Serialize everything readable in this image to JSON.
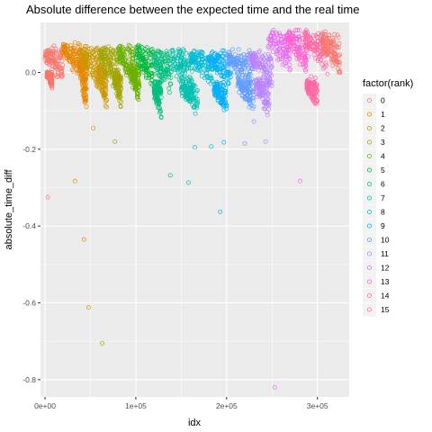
{
  "chart_data": {
    "type": "scatter",
    "title": "Absolute difference between the expected time and the real time",
    "xlabel": "idx",
    "ylabel": "absolute_time_diff",
    "xlim": [
      -5000,
      335000
    ],
    "ylim": [
      -0.845,
      0.13
    ],
    "x_ticks": [
      0,
      100000,
      200000,
      300000
    ],
    "x_tick_labels": [
      "0e+00",
      "1e+05",
      "2e+05",
      "3e+05"
    ],
    "y_ticks": [
      0.0,
      -0.2,
      -0.4,
      -0.6,
      -0.8
    ],
    "y_tick_labels": [
      "0.0",
      "-0.2",
      "-0.4",
      "-0.6",
      "-0.8"
    ],
    "grid": true,
    "legend_position": "right",
    "legend_title": "factor(rank)",
    "series": [
      {
        "name": "0",
        "color": "#F8766D"
      },
      {
        "name": "1",
        "color": "#E58700"
      },
      {
        "name": "2",
        "color": "#C99800"
      },
      {
        "name": "3",
        "color": "#A3A500"
      },
      {
        "name": "4",
        "color": "#6BB100"
      },
      {
        "name": "5",
        "color": "#00BA38"
      },
      {
        "name": "6",
        "color": "#00BF7D"
      },
      {
        "name": "7",
        "color": "#00C0AF"
      },
      {
        "name": "8",
        "color": "#00BCD8"
      },
      {
        "name": "9",
        "color": "#00B0F6"
      },
      {
        "name": "10",
        "color": "#619CFF"
      },
      {
        "name": "11",
        "color": "#B983FF"
      },
      {
        "name": "12",
        "color": "#E76BF3"
      },
      {
        "name": "13",
        "color": "#FD61D1"
      },
      {
        "name": "14",
        "color": "#FF67A4"
      },
      {
        "name": "15",
        "color": "#F8766D"
      }
    ],
    "clusters": [
      {
        "series": 0,
        "x": [
          0,
          20000
        ],
        "y_top": 0.06,
        "y_bottom": -0.03
      },
      {
        "series": 0,
        "x": [
          2000,
          8000
        ],
        "y_top": 0.0,
        "y_bottom": -0.04
      },
      {
        "series": 1,
        "x": [
          20000,
          40000
        ],
        "y_top": 0.07,
        "y_bottom": -0.02
      },
      {
        "series": 1,
        "x": [
          38000,
          46000
        ],
        "y_top": 0.03,
        "y_bottom": -0.1
      },
      {
        "series": 2,
        "x": [
          40000,
          60000
        ],
        "y_top": 0.06,
        "y_bottom": -0.05
      },
      {
        "series": 2,
        "x": [
          58000,
          68000
        ],
        "y_top": 0.02,
        "y_bottom": -0.1
      },
      {
        "series": 3,
        "x": [
          60000,
          80000
        ],
        "y_top": 0.06,
        "y_bottom": -0.05
      },
      {
        "series": 3,
        "x": [
          76000,
          84000
        ],
        "y_top": 0.0,
        "y_bottom": -0.09
      },
      {
        "series": 4,
        "x": [
          80000,
          100000
        ],
        "y_top": 0.06,
        "y_bottom": -0.04
      },
      {
        "series": 4,
        "x": [
          94000,
          104000
        ],
        "y_top": 0.01,
        "y_bottom": -0.08
      },
      {
        "series": 5,
        "x": [
          100000,
          120000
        ],
        "y_top": 0.06,
        "y_bottom": -0.04
      },
      {
        "series": 6,
        "x": [
          120000,
          140000
        ],
        "y_top": 0.05,
        "y_bottom": -0.06
      },
      {
        "series": 6,
        "x": [
          120000,
          128000
        ],
        "y_top": -0.03,
        "y_bottom": -0.12
      },
      {
        "series": 7,
        "x": [
          140000,
          162000
        ],
        "y_top": 0.05,
        "y_bottom": -0.07
      },
      {
        "series": 7,
        "x": [
          150000,
          168000
        ],
        "y_top": -0.03,
        "y_bottom": -0.11
      },
      {
        "series": 8,
        "x": [
          160000,
          185000
        ],
        "y_top": 0.05,
        "y_bottom": -0.04
      },
      {
        "series": 9,
        "x": [
          180000,
          205000
        ],
        "y_top": 0.05,
        "y_bottom": -0.04
      },
      {
        "series": 9,
        "x": [
          186000,
          200000
        ],
        "y_top": -0.03,
        "y_bottom": -0.11
      },
      {
        "series": 10,
        "x": [
          200000,
          230000
        ],
        "y_top": 0.05,
        "y_bottom": -0.04
      },
      {
        "series": 10,
        "x": [
          212000,
          230000
        ],
        "y_top": -0.02,
        "y_bottom": -0.1
      },
      {
        "series": 11,
        "x": [
          225000,
          250000
        ],
        "y_top": 0.05,
        "y_bottom": -0.03
      },
      {
        "series": 11,
        "x": [
          232000,
          248000
        ],
        "y_top": -0.02,
        "y_bottom": -0.12
      },
      {
        "series": 12,
        "x": [
          246000,
          270000
        ],
        "y_top": 0.1,
        "y_bottom": 0.0
      },
      {
        "series": 13,
        "x": [
          266000,
          290000
        ],
        "y_top": 0.1,
        "y_bottom": 0.0
      },
      {
        "series": 14,
        "x": [
          286000,
          312000
        ],
        "y_top": 0.1,
        "y_bottom": 0.0
      },
      {
        "series": 14,
        "x": [
          288000,
          300000
        ],
        "y_top": -0.02,
        "y_bottom": -0.1
      },
      {
        "series": 15,
        "x": [
          304000,
          325000
        ],
        "y_top": 0.09,
        "y_bottom": 0.0
      }
    ],
    "outliers": [
      {
        "series": 0,
        "x": 3000,
        "y": -0.325
      },
      {
        "series": 1,
        "x": 33000,
        "y": -0.283
      },
      {
        "series": 1,
        "x": 43000,
        "y": -0.435
      },
      {
        "series": 2,
        "x": 48000,
        "y": -0.612
      },
      {
        "series": 2,
        "x": 53000,
        "y": -0.145
      },
      {
        "series": 3,
        "x": 63000,
        "y": -0.705
      },
      {
        "series": 3,
        "x": 77000,
        "y": -0.18
      },
      {
        "series": 6,
        "x": 138000,
        "y": -0.268
      },
      {
        "series": 7,
        "x": 158000,
        "y": -0.287
      },
      {
        "series": 8,
        "x": 165000,
        "y": -0.195
      },
      {
        "series": 8,
        "x": 183000,
        "y": -0.193
      },
      {
        "series": 9,
        "x": 193000,
        "y": -0.363
      },
      {
        "series": 9,
        "x": 197000,
        "y": -0.182
      },
      {
        "series": 10,
        "x": 220000,
        "y": -0.185
      },
      {
        "series": 11,
        "x": 230000,
        "y": -0.128
      },
      {
        "series": 11,
        "x": 243000,
        "y": -0.18
      },
      {
        "series": 12,
        "x": 253000,
        "y": -0.82
      },
      {
        "series": 13,
        "x": 281000,
        "y": -0.283
      },
      {
        "series": 13,
        "x": 277000,
        "y": 0.09
      },
      {
        "series": 12,
        "x": 250000,
        "y": 0.105
      }
    ]
  }
}
